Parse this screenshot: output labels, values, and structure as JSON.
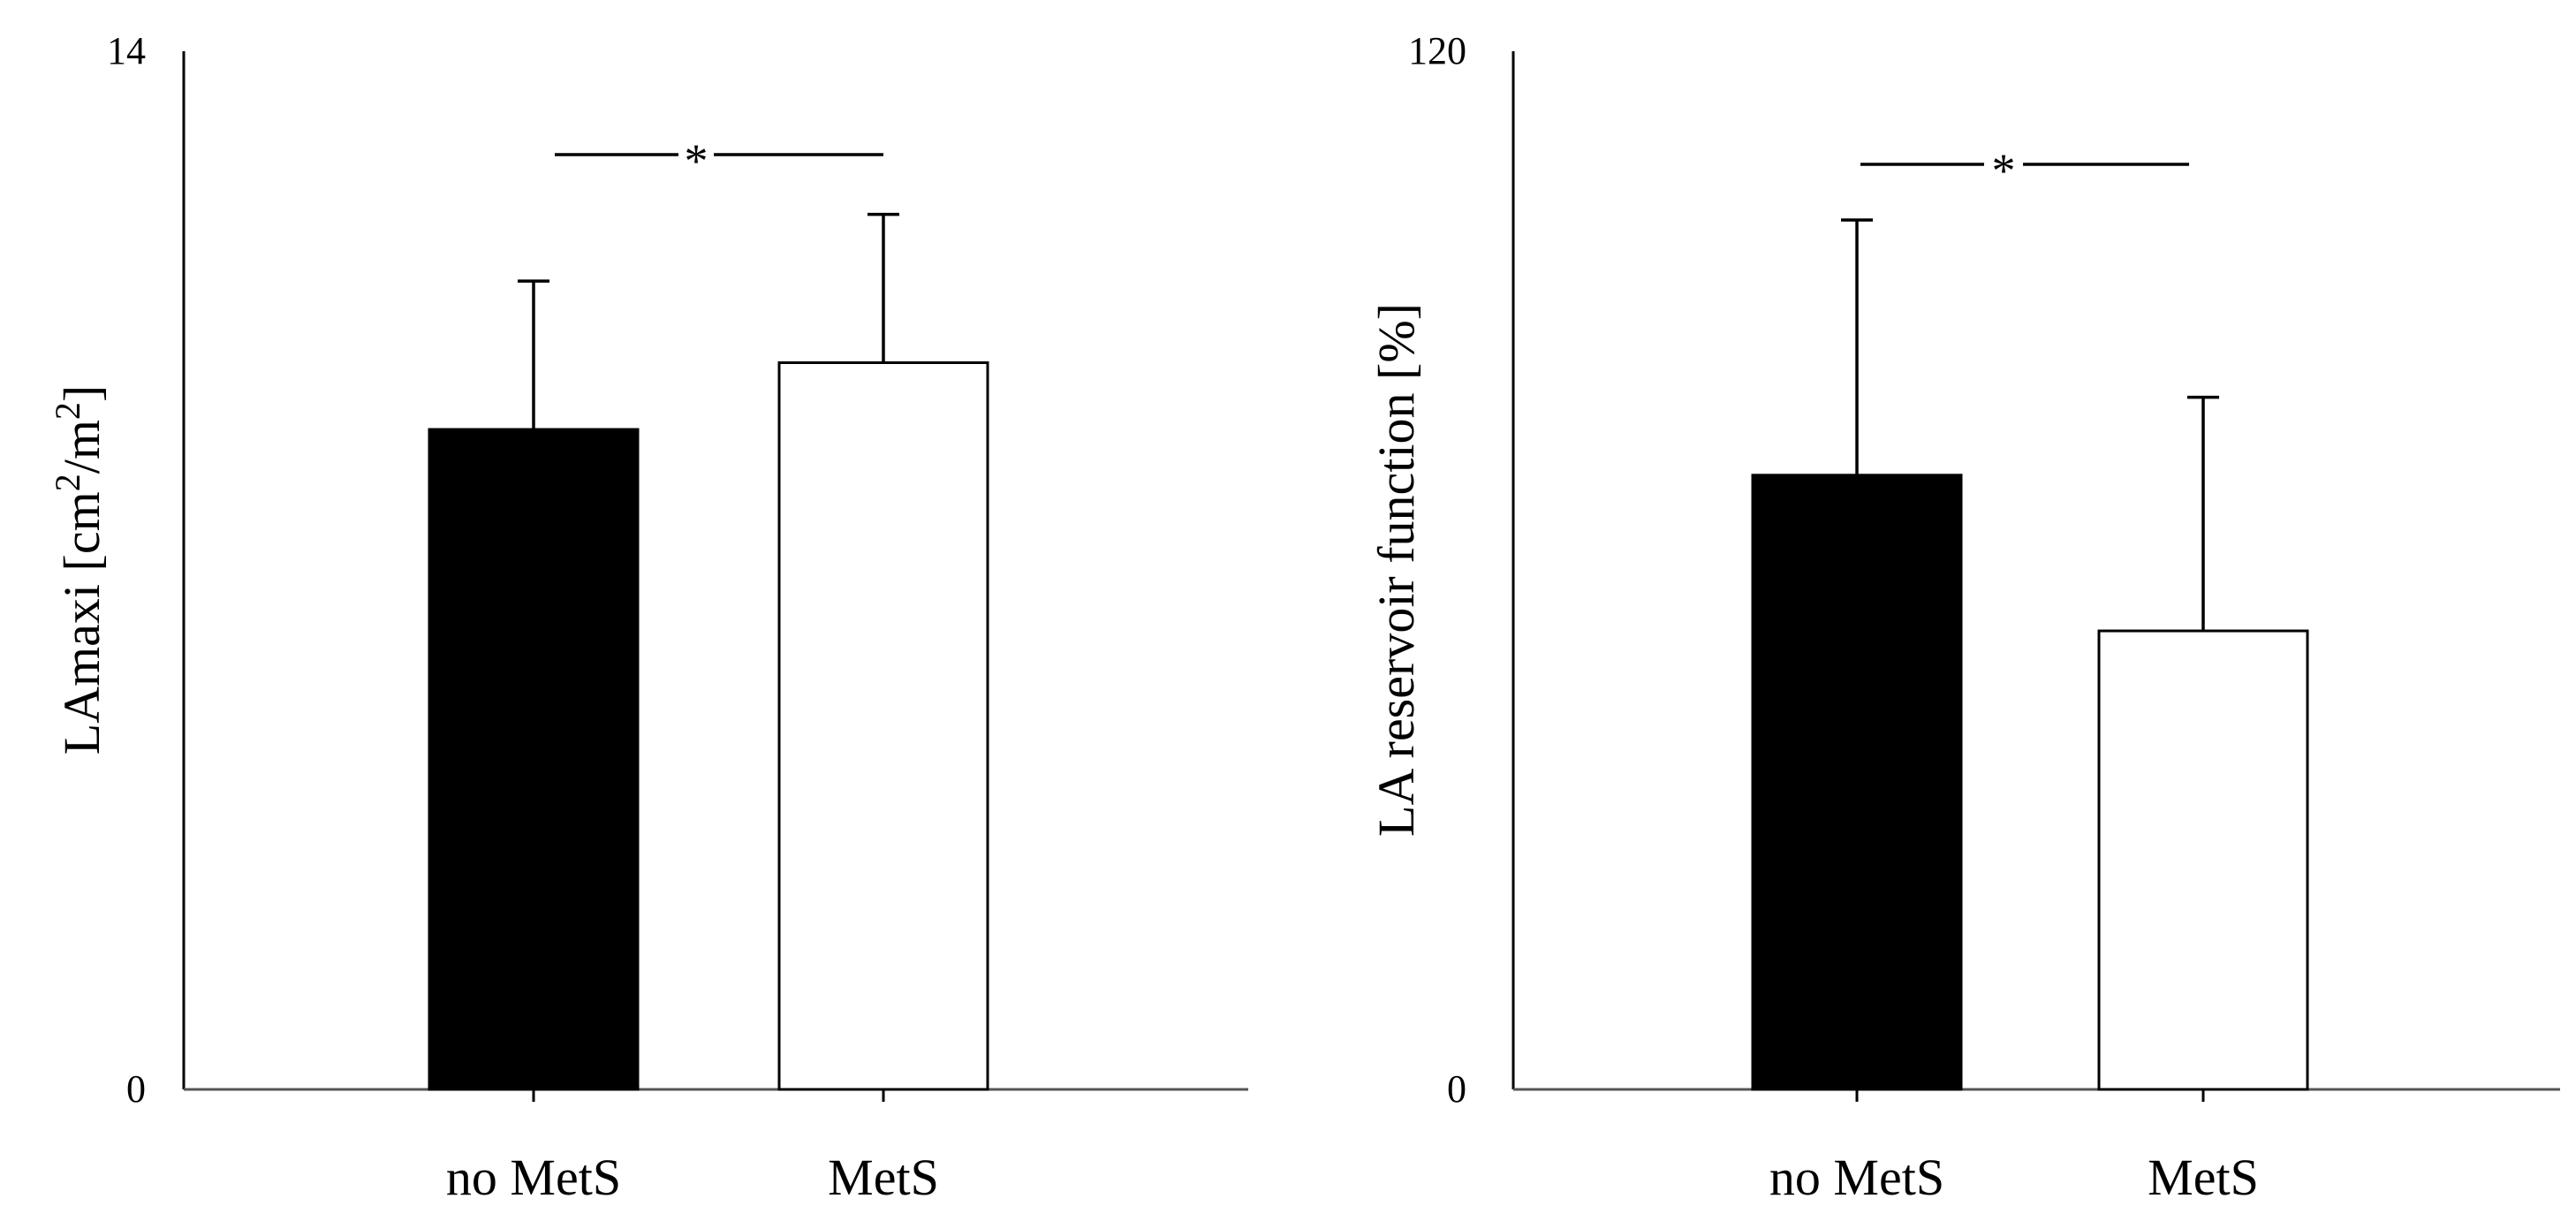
{
  "chart_data": [
    {
      "type": "bar",
      "categories": [
        "no MetS",
        "MetS"
      ],
      "values": [
        8.9,
        9.8
      ],
      "error_plus": [
        2.0,
        2.0
      ],
      "ylabel_main": "LAmaxi [cm",
      "ylabel_sup1": "2",
      "ylabel_mid": "/m",
      "ylabel_sup2": "2",
      "ylabel_end": "]",
      "xlabel": "",
      "ylim": [
        0,
        14
      ],
      "ytick_labels": [
        "0",
        "14"
      ],
      "significance": "*",
      "bar_colors": [
        "#000000",
        "#ffffff"
      ],
      "grid": false
    },
    {
      "type": "bar",
      "categories": [
        "no MetS",
        "MetS"
      ],
      "values": [
        71,
        53
      ],
      "error_plus": [
        29.5,
        27
      ],
      "ylabel": "LA reservoir function [%]",
      "xlabel": "",
      "ylim": [
        0,
        120
      ],
      "ytick_labels": [
        "0",
        "120"
      ],
      "significance": "*",
      "bar_colors": [
        "#000000",
        "#ffffff"
      ],
      "grid": false
    }
  ]
}
